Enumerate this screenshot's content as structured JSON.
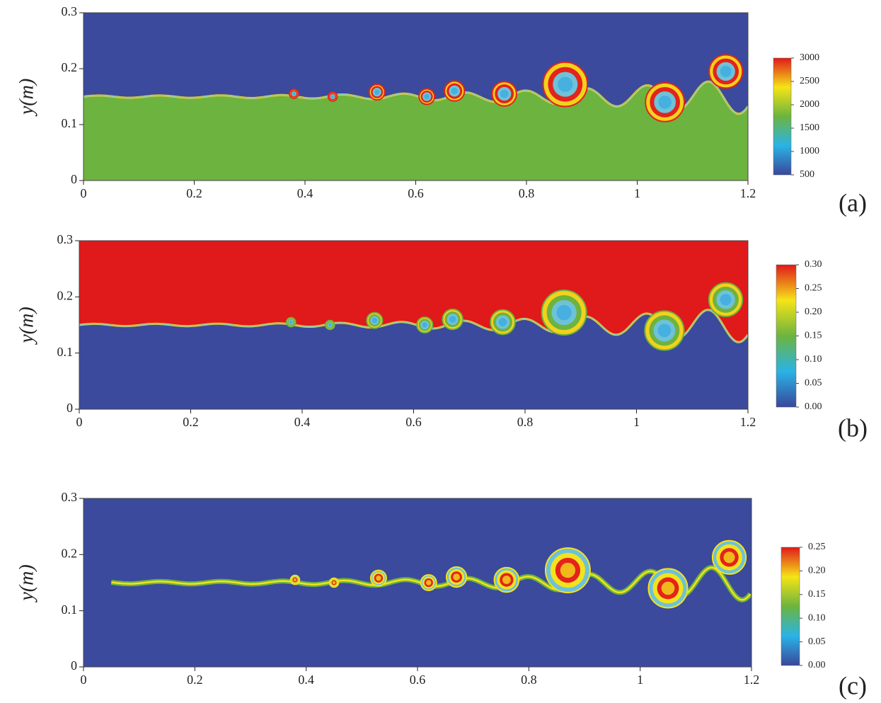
{
  "chart_data": [
    {
      "type": "contour",
      "ylabel": "y(m)",
      "panel_label": "(a)",
      "xlim": [
        0,
        1.2
      ],
      "ylim": [
        0,
        0.3
      ],
      "xticks": [
        0,
        0.2,
        0.4,
        0.6,
        0.8,
        1,
        1.2
      ],
      "yticks": [
        0,
        0.1,
        0.2,
        0.3
      ],
      "colorbar": {
        "lim": [
          500,
          3000
        ],
        "ticks": [
          500,
          1000,
          1500,
          2000,
          2500,
          3000
        ]
      }
    },
    {
      "type": "contour",
      "ylabel": "y(m)",
      "panel_label": "(b)",
      "xlim": [
        0,
        1.2
      ],
      "ylim": [
        0,
        0.3
      ],
      "xticks": [
        0,
        0.2,
        0.4,
        0.6,
        0.8,
        1,
        1.2
      ],
      "yticks": [
        0,
        0.1,
        0.2,
        0.3
      ],
      "colorbar": {
        "lim": [
          0,
          0.3
        ],
        "ticks": [
          {
            "value": 0,
            "label": "0.00"
          },
          {
            "value": 0.05,
            "label": "0.05"
          },
          {
            "value": 0.1,
            "label": "0.10"
          },
          {
            "value": 0.15,
            "label": "0.15"
          },
          {
            "value": 0.2,
            "label": "0.20"
          },
          {
            "value": 0.25,
            "label": "0.25"
          },
          {
            "value": 0.3,
            "label": "0.30"
          }
        ]
      }
    },
    {
      "type": "contour",
      "ylabel": "y(m)",
      "panel_label": "(c)",
      "xlim": [
        0,
        1.2
      ],
      "ylim": [
        0,
        0.3
      ],
      "xticks": [
        0,
        0.2,
        0.4,
        0.6,
        0.8,
        1,
        1.2
      ],
      "yticks": [
        0,
        0.1,
        0.2,
        0.3
      ],
      "colorbar": {
        "lim": [
          0,
          0.25
        ],
        "ticks": [
          {
            "value": 0,
            "label": "0.00"
          },
          {
            "value": 0.05,
            "label": "0.05"
          },
          {
            "value": 0.1,
            "label": "0.10"
          },
          {
            "value": 0.15,
            "label": "0.15"
          },
          {
            "value": 0.2,
            "label": "0.20"
          },
          {
            "value": 0.25,
            "label": "0.25"
          }
        ]
      }
    }
  ]
}
